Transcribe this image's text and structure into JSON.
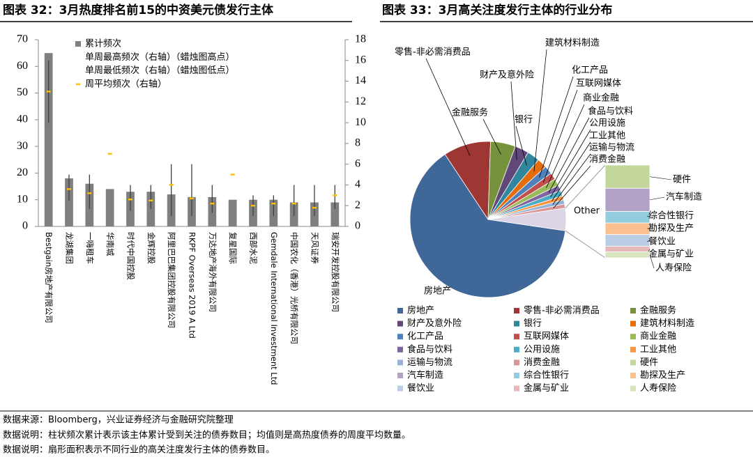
{
  "header": {
    "left_title": "图表 32：3月热度排名前15的中资美元债发行主体",
    "right_title": "图表 33：3月高关注度发行主体的行业分布"
  },
  "chart_data": [
    {
      "type": "bar",
      "categories": [
        "Bestgain房地产有限公司",
        "龙湖集团",
        "一嗨租车",
        "华南城",
        "时代中国控股",
        "金辉控股",
        "阿里巴巴集团控股有限公司",
        "RKPF Overseas 2019 A Ltd",
        "万达地产海外有限公司",
        "复星国际",
        "西部水泥",
        "Gemdale International Investment Ltd",
        "中国农化（香港）光桥有限公司",
        "天风证券",
        "瑞安开发控股有限公司"
      ],
      "series": [
        {
          "name": "累计频次",
          "color": "#7f7f7f",
          "values": [
            65,
            18,
            16,
            14,
            13,
            13,
            12,
            11,
            11,
            10,
            10,
            10,
            9,
            9,
            9
          ]
        },
        {
          "name": "单周最高频次（右轴）（蜡烛图高点）",
          "color": "#404040",
          "axis": "y2",
          "values": [
            16,
            5,
            5,
            7,
            4,
            4,
            6,
            6,
            4,
            5,
            3,
            3,
            4,
            4,
            4
          ]
        },
        {
          "name": "单周最低频次（右轴）（蜡烛图低点）",
          "color": "#404040",
          "axis": "y2",
          "values": [
            10,
            2.5,
            1.7,
            7,
            1.5,
            1.7,
            1,
            1,
            1.3,
            5,
            1,
            1,
            1,
            1,
            1.7
          ]
        },
        {
          "name": "周平均频次（右轴）",
          "color": "#ffc000",
          "axis": "y2",
          "values": [
            13,
            3.6,
            3.2,
            7,
            2.6,
            2.5,
            4,
            2.7,
            2.2,
            5,
            2,
            2.2,
            2.2,
            1.8,
            3
          ]
        }
      ],
      "ylim": [
        0,
        70
      ],
      "yticks": [
        0,
        10,
        20,
        30,
        40,
        50,
        60,
        70
      ],
      "y2lim": [
        0,
        18
      ],
      "y2ticks": [
        0,
        2,
        4,
        6,
        8,
        10,
        12,
        14,
        16,
        18
      ],
      "legend": "top-left"
    },
    {
      "type": "pie",
      "categories": [
        "房地产",
        "零售-非必需消费品",
        "金融服务",
        "财产及意外险",
        "银行",
        "建筑材料制造",
        "化工产品",
        "互联网媒体",
        "商业金融",
        "食品与饮料",
        "公用设施",
        "工业其他",
        "运输与物流",
        "消费金融",
        "硬件",
        "汽车制造",
        "综合性银行",
        "勘探及生产",
        "餐饮业",
        "金属与矿业",
        "人寿保险"
      ],
      "values": [
        220,
        34,
        18,
        10,
        9,
        7,
        6,
        5,
        5,
        4,
        4,
        3,
        3,
        3,
        4,
        4,
        2,
        2,
        2,
        1,
        1
      ],
      "colors": [
        "#3f6797",
        "#9e3733",
        "#77923c",
        "#60497a",
        "#31859c",
        "#e46c0a",
        "#4f81bd",
        "#c0504d",
        "#9bbb59",
        "#8064a2",
        "#4bacc6",
        "#f79646",
        "#95b3d7",
        "#d99694",
        "#c3d69b",
        "#b3a2c7",
        "#93cddd",
        "#fac090",
        "#b9cde5",
        "#e6b9b8",
        "#d7e4bd"
      ],
      "secondary_start": 14,
      "other_label": "Other",
      "other_color": "#dcd5e6",
      "legend": "bottom"
    }
  ],
  "footnotes": [
    "数据来源：Bloomberg，兴业证券经济与金融研究院整理",
    "数据说明：柱状频次累计表示该主体累计受到关注的债券数目；均值则是高热度债券的周度平均数量。",
    "数据说明：扇形面积表示不同行业的高关注度发行主体的债券数目。"
  ]
}
